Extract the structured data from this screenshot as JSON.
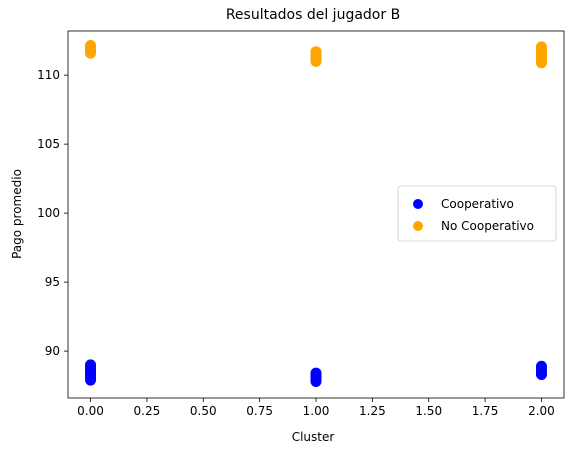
{
  "chart_data": {
    "type": "scatter",
    "title": "Resultados del jugador B",
    "xlabel": "Cluster",
    "ylabel": "Pago promedio",
    "xlim": [
      -0.1,
      2.1
    ],
    "ylim": [
      86.6,
      113.2
    ],
    "xticks": [
      0.0,
      0.25,
      0.5,
      0.75,
      1.0,
      1.25,
      1.5,
      1.75,
      2.0
    ],
    "xtick_labels": [
      "0.00",
      "0.25",
      "0.50",
      "0.75",
      "1.00",
      "1.25",
      "1.50",
      "1.75",
      "2.00"
    ],
    "yticks": [
      90,
      95,
      100,
      105,
      110
    ],
    "ytick_labels": [
      "90",
      "95",
      "100",
      "105",
      "110"
    ],
    "grid": false,
    "legend_position": "center-right",
    "series": [
      {
        "name": "Cooperativo",
        "color": "#0000ff",
        "points": [
          {
            "x": 0,
            "y": 87.9
          },
          {
            "x": 0,
            "y": 88.05
          },
          {
            "x": 0,
            "y": 88.2
          },
          {
            "x": 0,
            "y": 88.35
          },
          {
            "x": 0,
            "y": 88.5
          },
          {
            "x": 0,
            "y": 88.65
          },
          {
            "x": 0,
            "y": 88.8
          },
          {
            "x": 0,
            "y": 88.95
          },
          {
            "x": 0,
            "y": 89.0
          },
          {
            "x": 1,
            "y": 87.8
          },
          {
            "x": 1,
            "y": 87.95
          },
          {
            "x": 1,
            "y": 88.1
          },
          {
            "x": 1,
            "y": 88.25
          },
          {
            "x": 1,
            "y": 88.4
          },
          {
            "x": 2,
            "y": 88.3
          },
          {
            "x": 2,
            "y": 88.45
          },
          {
            "x": 2,
            "y": 88.6
          },
          {
            "x": 2,
            "y": 88.75
          },
          {
            "x": 2,
            "y": 88.9
          }
        ]
      },
      {
        "name": "No Cooperativo",
        "color": "#ffa500",
        "points": [
          {
            "x": 0,
            "y": 111.6
          },
          {
            "x": 0,
            "y": 111.75
          },
          {
            "x": 0,
            "y": 111.9
          },
          {
            "x": 0,
            "y": 112.05
          },
          {
            "x": 0,
            "y": 112.15
          },
          {
            "x": 1,
            "y": 111.0
          },
          {
            "x": 1,
            "y": 111.15
          },
          {
            "x": 1,
            "y": 111.3
          },
          {
            "x": 1,
            "y": 111.45
          },
          {
            "x": 1,
            "y": 111.6
          },
          {
            "x": 1,
            "y": 111.7
          },
          {
            "x": 2,
            "y": 110.9
          },
          {
            "x": 2,
            "y": 111.05
          },
          {
            "x": 2,
            "y": 111.2
          },
          {
            "x": 2,
            "y": 111.35
          },
          {
            "x": 2,
            "y": 111.5
          },
          {
            "x": 2,
            "y": 111.65
          },
          {
            "x": 2,
            "y": 111.8
          },
          {
            "x": 2,
            "y": 111.95
          },
          {
            "x": 2,
            "y": 112.05
          }
        ]
      }
    ]
  }
}
